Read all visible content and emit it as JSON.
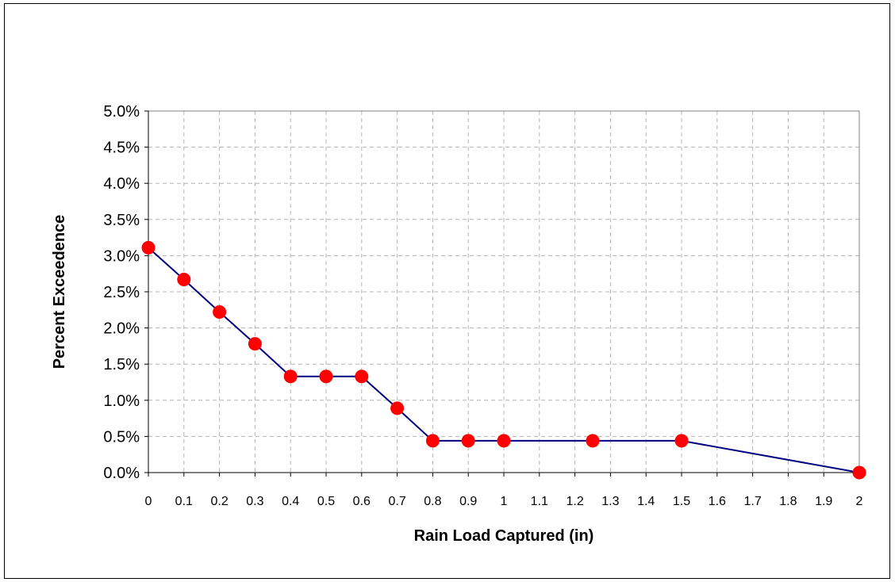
{
  "chart_data": {
    "type": "line",
    "title": "",
    "xlabel": "Rain Load Captured (in)",
    "ylabel": "Percent Exceedence",
    "x_tick_labels": [
      "0",
      "0.1",
      "0.2",
      "0.3",
      "0.4",
      "0.5",
      "0.6",
      "0.7",
      "0.8",
      "0.9",
      "1",
      "1.1",
      "1.2",
      "1.3",
      "1.4",
      "1.5",
      "1.6",
      "1.7",
      "1.8",
      "1.9",
      "2"
    ],
    "y_tick_labels": [
      "0.0%",
      "0.5%",
      "1.0%",
      "1.5%",
      "2.0%",
      "2.5%",
      "3.0%",
      "3.5%",
      "4.0%",
      "4.5%",
      "5.0%"
    ],
    "xlim": [
      0,
      2
    ],
    "ylim": [
      0,
      5
    ],
    "y_unit": "percent",
    "grid": true,
    "legend": "none",
    "series": [
      {
        "x": [
          0,
          0.1,
          0.2,
          0.3,
          0.4,
          0.5,
          0.6,
          0.7,
          0.8,
          0.9,
          1.0,
          1.25,
          1.5,
          2.0
        ],
        "y": [
          3.11,
          2.67,
          2.22,
          1.78,
          1.33,
          1.33,
          1.33,
          0.89,
          0.44,
          0.44,
          0.44,
          0.44,
          0.44,
          0.0
        ],
        "line_color": "#000080",
        "marker_color": "#ff0000"
      }
    ]
  }
}
